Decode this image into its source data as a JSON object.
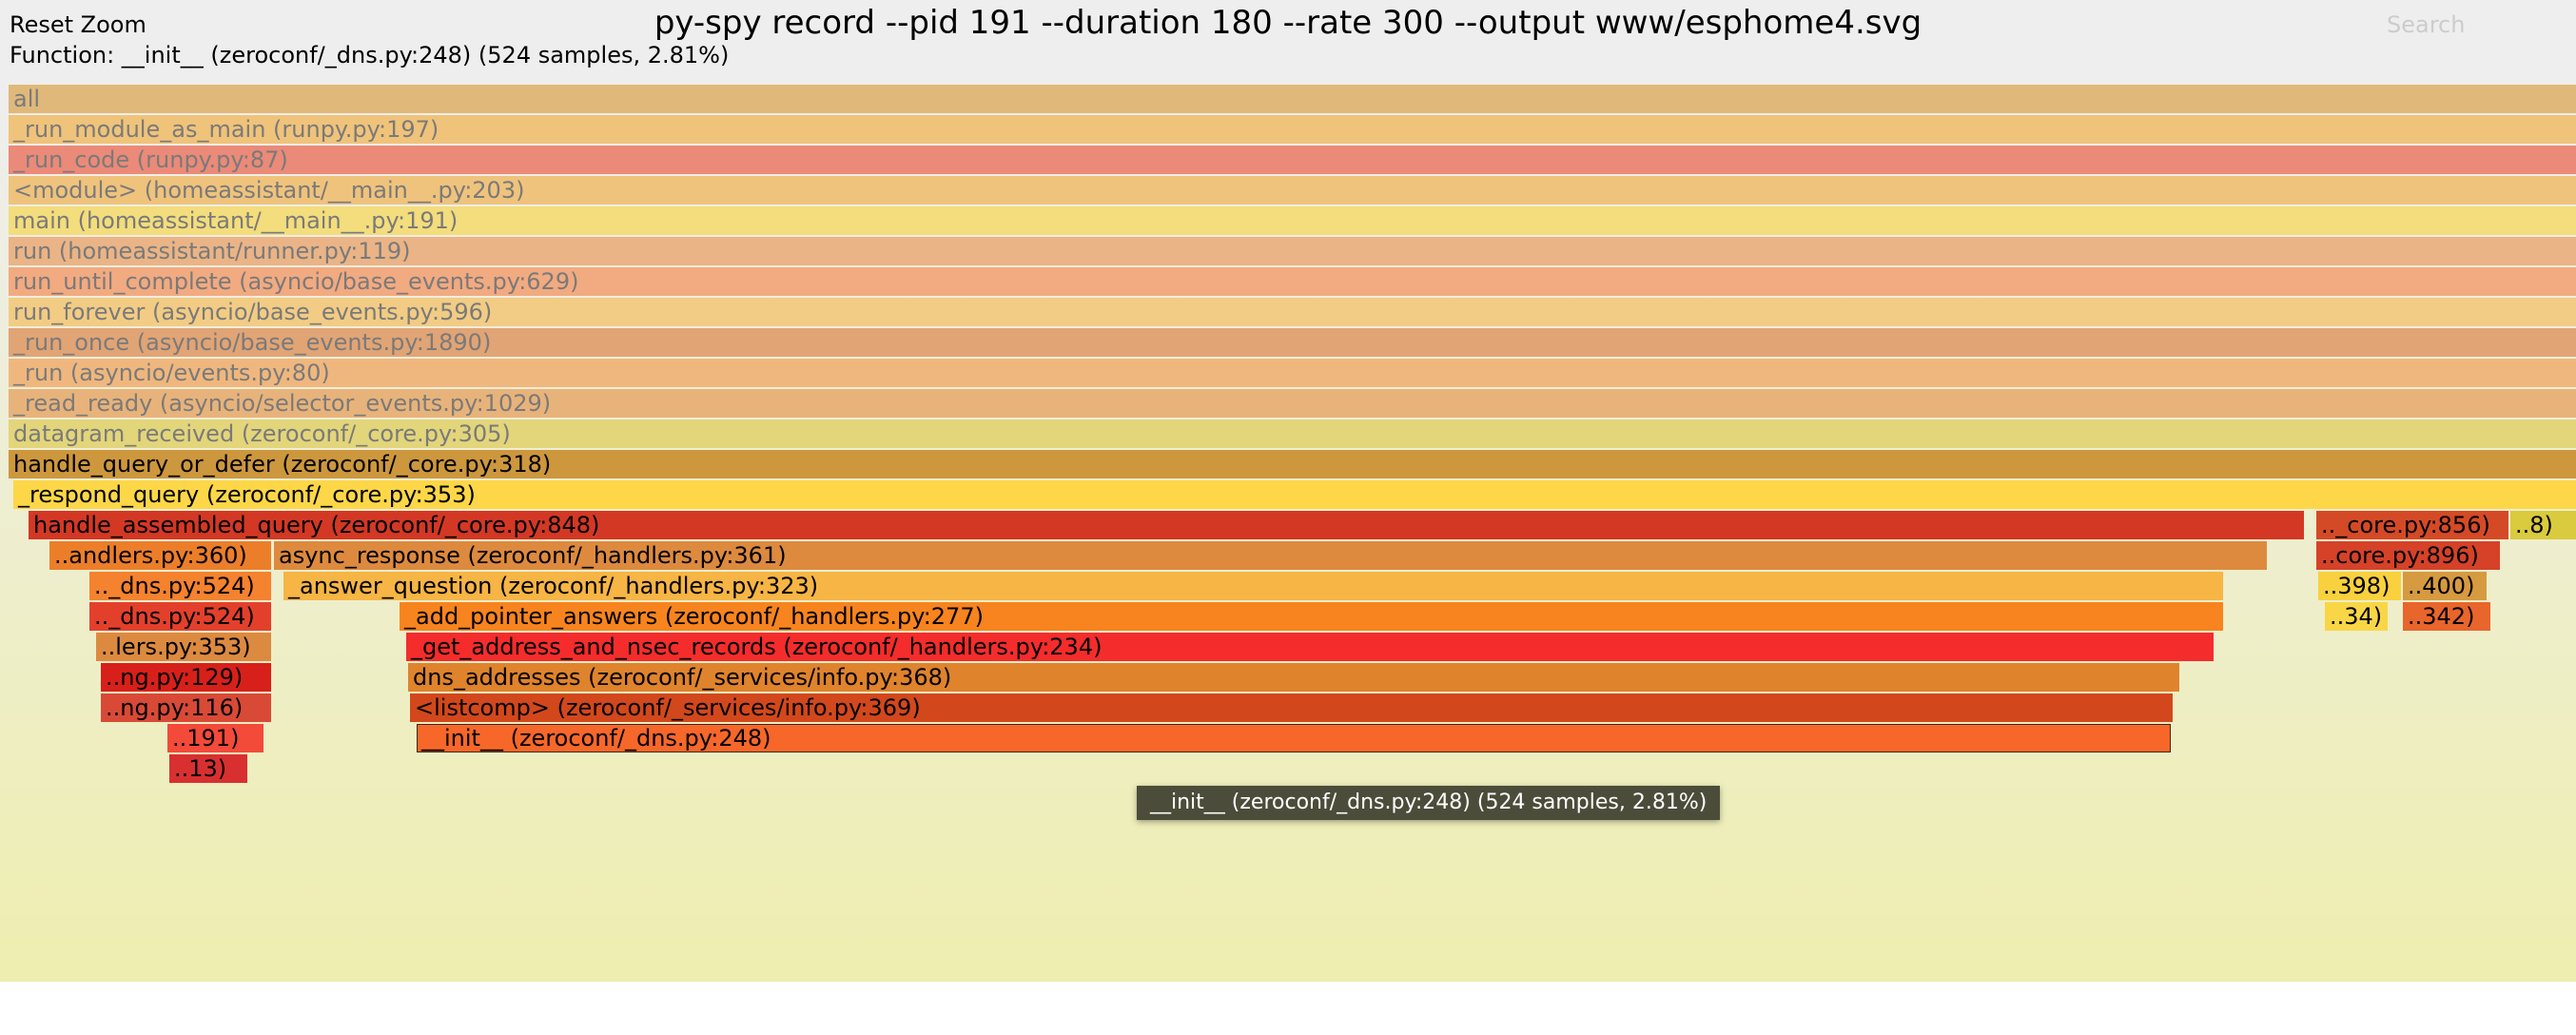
{
  "header": {
    "reset_zoom": "Reset Zoom",
    "title": "py-spy record --pid 191 --duration 180 --rate 300 --output www/esphome4.svg",
    "search": "Search",
    "details": "Function: __init__ (zeroconf/_dns.py:248) (524 samples, 2.81%)"
  },
  "tooltip": "__init__ (zeroconf/_dns.py:248) (524 samples, 2.81%)",
  "frames": [
    {
      "label": "all",
      "color": "#e0b97a",
      "dim": true
    },
    {
      "label": "_run_module_as_main (runpy.py:197)",
      "color": "#f0c37a",
      "dim": true
    },
    {
      "label": "_run_code (runpy.py:87)",
      "color": "#eb8a78",
      "dim": true
    },
    {
      "label": "<module> (homeassistant/__main__.py:203)",
      "color": "#efc37c",
      "dim": true
    },
    {
      "label": "main (homeassistant/__main__.py:191)",
      "color": "#f3dd7c",
      "dim": true
    },
    {
      "label": "run (homeassistant/runner.py:119)",
      "color": "#eab486",
      "dim": true
    },
    {
      "label": "run_until_complete (asyncio/base_events.py:629)",
      "color": "#f2aa80",
      "dim": true
    },
    {
      "label": "run_forever (asyncio/base_events.py:596)",
      "color": "#f2cc84",
      "dim": true
    },
    {
      "label": "_run_once (asyncio/base_events.py:1890)",
      "color": "#e1a475",
      "dim": true
    },
    {
      "label": "_run (asyncio/events.py:80)",
      "color": "#efb77e",
      "dim": true
    },
    {
      "label": "_read_ready (asyncio/selector_events.py:1029)",
      "color": "#e8b37a",
      "dim": true
    },
    {
      "label": "datagram_received (zeroconf/_core.py:305)",
      "color": "#e3d57a",
      "dim": true
    },
    {
      "label": "handle_query_or_defer (zeroconf/_core.py:318)",
      "color": "#cd973d",
      "dim": false
    },
    {
      "label": "_respond_query (zeroconf/_core.py:353)",
      "color": "#fdd747",
      "dim": false
    },
    {
      "label": "handle_assembled_query (zeroconf/_core.py:848)",
      "color": "#d33824",
      "dim": false
    },
    {
      "label": ".._core.py:856)",
      "color": "#d54a26",
      "dim": false
    },
    {
      "label": "..8)",
      "color": "#d9ca3e",
      "dim": false
    },
    {
      "label": "..andlers.py:360)",
      "color": "#ec7e2a",
      "dim": false
    },
    {
      "label": "async_response (zeroconf/_handlers.py:361)",
      "color": "#dd8a3e",
      "dim": false
    },
    {
      "label": "..core.py:896)",
      "color": "#d54228",
      "dim": false
    },
    {
      "label": ".._dns.py:524)",
      "color": "#f4822e",
      "dim": false
    },
    {
      "label": "_answer_question (zeroconf/_handlers.py:323)",
      "color": "#f6b544",
      "dim": false
    },
    {
      "label": "..398)",
      "color": "#f9d13e",
      "dim": false
    },
    {
      "label": "..400)",
      "color": "#d69a40",
      "dim": false
    },
    {
      "label": ".._dns.py:524)",
      "color": "#e3402c",
      "dim": false
    },
    {
      "label": "_add_pointer_answers (zeroconf/_handlers.py:277)",
      "color": "#f7841e",
      "dim": false
    },
    {
      "label": "..34)",
      "color": "#f9d646",
      "dim": false
    },
    {
      "label": "..342)",
      "color": "#e8652c",
      "dim": false
    },
    {
      "label": "..lers.py:353)",
      "color": "#dc8a40",
      "dim": false
    },
    {
      "label": "_get_address_and_nsec_records (zeroconf/_handlers.py:234)",
      "color": "#f42c2c",
      "dim": false
    },
    {
      "label": "..ng.py:129)",
      "color": "#d8201a",
      "dim": false
    },
    {
      "label": "dns_addresses (zeroconf/_services/info.py:368)",
      "color": "#df832c",
      "dim": false
    },
    {
      "label": "..ng.py:116)",
      "color": "#d84a36",
      "dim": false
    },
    {
      "label": "<listcomp> (zeroconf/_services/info.py:369)",
      "color": "#d2481c",
      "dim": false
    },
    {
      "label": "..191)",
      "color": "#f34a3a",
      "dim": false
    },
    {
      "label": "__init__ (zeroconf/_dns.py:248)",
      "color": "#f7672a",
      "dim": false
    },
    {
      "label": "..13)",
      "color": "#d83030",
      "dim": false
    }
  ]
}
